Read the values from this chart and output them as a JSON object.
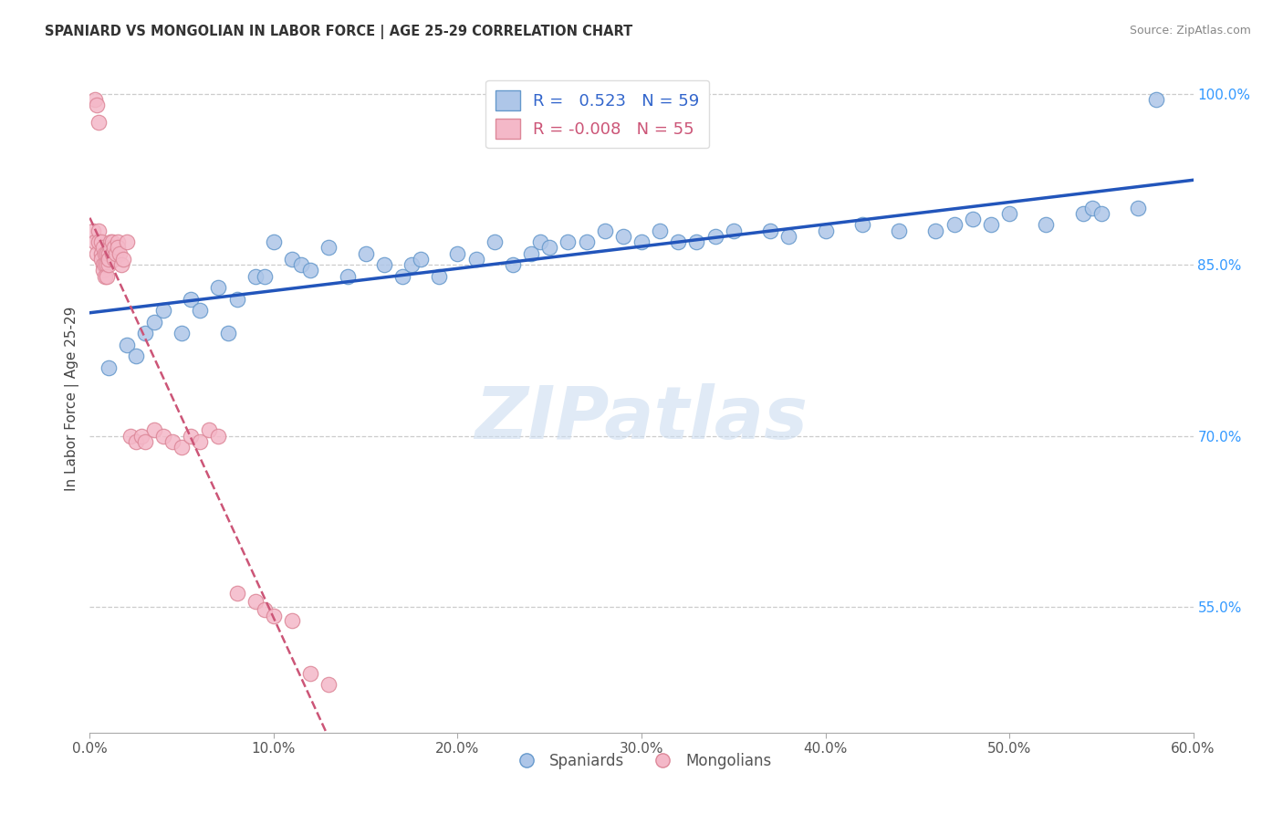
{
  "title": "SPANIARD VS MONGOLIAN IN LABOR FORCE | AGE 25-29 CORRELATION CHART",
  "source": "Source: ZipAtlas.com",
  "ylabel": "In Labor Force | Age 25-29",
  "xmin": 0.0,
  "xmax": 0.6,
  "ymin": 0.44,
  "ymax": 1.025,
  "xtick_vals": [
    0.0,
    0.1,
    0.2,
    0.3,
    0.4,
    0.5,
    0.6
  ],
  "xtick_labels": [
    "0.0%",
    "10.0%",
    "20.0%",
    "30.0%",
    "40.0%",
    "50.0%",
    "60.0%"
  ],
  "ytick_vals_right": [
    1.0,
    0.85,
    0.7,
    0.55
  ],
  "ytick_labels_right": [
    "100.0%",
    "85.0%",
    "70.0%",
    "55.0%"
  ],
  "blue_R": "0.523",
  "blue_N": 59,
  "pink_R": "-0.008",
  "pink_N": 55,
  "blue_color": "#aec6e8",
  "pink_color": "#f4b8c8",
  "blue_edge_color": "#6699cc",
  "pink_edge_color": "#dd8899",
  "blue_line_color": "#2255bb",
  "pink_line_color": "#cc5577",
  "watermark_text": "ZIPatlas",
  "legend_label_blue": "Spaniards",
  "legend_label_pink": "Mongolians",
  "blue_x": [
    0.01,
    0.02,
    0.025,
    0.03,
    0.035,
    0.04,
    0.05,
    0.055,
    0.06,
    0.07,
    0.075,
    0.08,
    0.09,
    0.095,
    0.1,
    0.11,
    0.115,
    0.12,
    0.13,
    0.14,
    0.15,
    0.16,
    0.17,
    0.175,
    0.18,
    0.19,
    0.2,
    0.21,
    0.22,
    0.23,
    0.24,
    0.245,
    0.25,
    0.26,
    0.27,
    0.28,
    0.29,
    0.3,
    0.31,
    0.32,
    0.33,
    0.34,
    0.35,
    0.37,
    0.38,
    0.4,
    0.42,
    0.44,
    0.46,
    0.47,
    0.48,
    0.49,
    0.5,
    0.52,
    0.54,
    0.545,
    0.55,
    0.57,
    0.58
  ],
  "blue_y": [
    0.76,
    0.78,
    0.77,
    0.79,
    0.8,
    0.81,
    0.79,
    0.82,
    0.81,
    0.83,
    0.79,
    0.82,
    0.84,
    0.84,
    0.87,
    0.855,
    0.85,
    0.845,
    0.865,
    0.84,
    0.86,
    0.85,
    0.84,
    0.85,
    0.855,
    0.84,
    0.86,
    0.855,
    0.87,
    0.85,
    0.86,
    0.87,
    0.865,
    0.87,
    0.87,
    0.88,
    0.875,
    0.87,
    0.88,
    0.87,
    0.87,
    0.875,
    0.88,
    0.88,
    0.875,
    0.88,
    0.885,
    0.88,
    0.88,
    0.885,
    0.89,
    0.885,
    0.895,
    0.885,
    0.895,
    0.9,
    0.895,
    0.9,
    0.995
  ],
  "pink_x": [
    0.002,
    0.003,
    0.003,
    0.004,
    0.004,
    0.005,
    0.005,
    0.005,
    0.006,
    0.006,
    0.006,
    0.007,
    0.007,
    0.007,
    0.008,
    0.008,
    0.008,
    0.009,
    0.009,
    0.009,
    0.01,
    0.01,
    0.01,
    0.011,
    0.011,
    0.012,
    0.012,
    0.013,
    0.013,
    0.014,
    0.015,
    0.015,
    0.016,
    0.017,
    0.018,
    0.02,
    0.022,
    0.025,
    0.028,
    0.03,
    0.035,
    0.04,
    0.045,
    0.05,
    0.055,
    0.06,
    0.065,
    0.07,
    0.08,
    0.09,
    0.095,
    0.1,
    0.11,
    0.12,
    0.13
  ],
  "pink_y": [
    0.88,
    0.87,
    0.995,
    0.86,
    0.99,
    0.975,
    0.88,
    0.87,
    0.86,
    0.87,
    0.855,
    0.865,
    0.85,
    0.845,
    0.86,
    0.85,
    0.84,
    0.86,
    0.85,
    0.84,
    0.85,
    0.86,
    0.855,
    0.87,
    0.865,
    0.86,
    0.87,
    0.855,
    0.865,
    0.86,
    0.87,
    0.865,
    0.86,
    0.85,
    0.855,
    0.87,
    0.7,
    0.695,
    0.7,
    0.695,
    0.705,
    0.7,
    0.695,
    0.69,
    0.7,
    0.695,
    0.705,
    0.7,
    0.562,
    0.555,
    0.548,
    0.542,
    0.538,
    0.492,
    0.482
  ]
}
